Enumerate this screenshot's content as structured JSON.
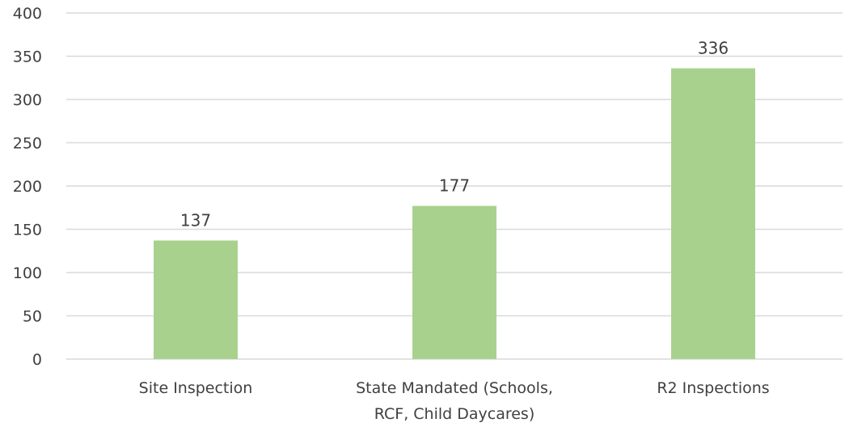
{
  "chart_data": {
    "type": "bar",
    "categories": [
      [
        "Site Inspection"
      ],
      [
        "State Mandated (Schools,",
        "RCF, Child Daycares)"
      ],
      [
        "R2 Inspections"
      ]
    ],
    "values": [
      137,
      177,
      336
    ],
    "data_labels": [
      "137",
      "177",
      "336"
    ],
    "yticks": [
      "0",
      "50",
      "100",
      "150",
      "200",
      "250",
      "300",
      "350",
      "400"
    ],
    "ylim": [
      0,
      400
    ],
    "grid": true,
    "bar_color": "#a9d18e",
    "title": "",
    "xlabel": "",
    "ylabel": ""
  }
}
